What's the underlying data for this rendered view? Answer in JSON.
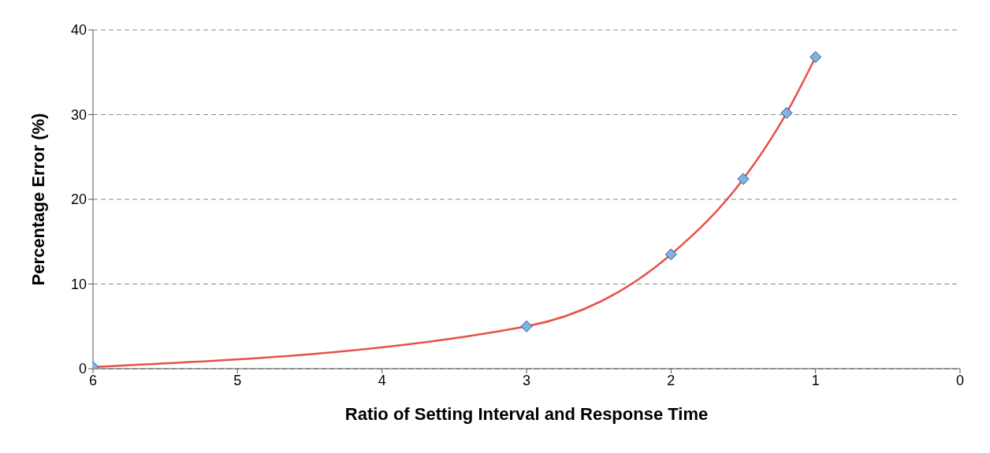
{
  "chart_data": {
    "type": "line",
    "xlabel": "Ratio of Setting Interval and Response Time",
    "ylabel": "Percentage Error (%)",
    "x": [
      6,
      3,
      2,
      1.5,
      1.2,
      1
    ],
    "series": [
      {
        "color": "#e8504a",
        "values": [
          0.2,
          5.0,
          13.5,
          22.4,
          30.2,
          36.8
        ]
      }
    ],
    "xlim": [
      6,
      0
    ],
    "xticks": [
      6,
      5,
      4,
      3,
      2,
      1,
      0
    ],
    "ylim": [
      0,
      40
    ],
    "yticks": [
      0,
      10,
      20,
      30,
      40
    ],
    "grid": "y",
    "marker": "diamond",
    "line_style": "solid"
  }
}
